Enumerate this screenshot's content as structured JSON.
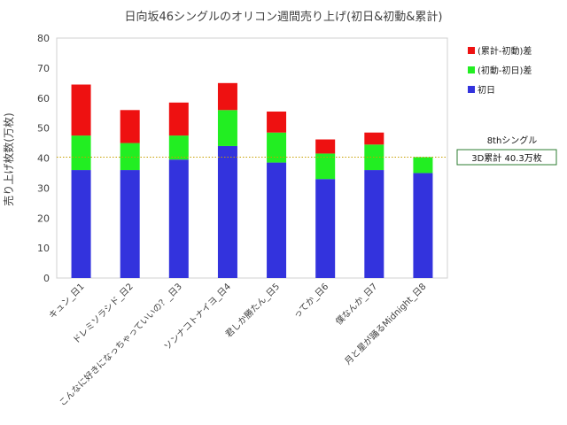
{
  "chart_data": {
    "type": "bar",
    "stacked": true,
    "title": "日向坂46シングルのオリコン週間売り上げ(初日&初動&累計)",
    "ylabel": "売り上げ枚数(万枚)",
    "xlabel": "",
    "ylim": [
      0,
      80
    ],
    "yticks": [
      0,
      10,
      20,
      30,
      40,
      50,
      60,
      70,
      80
    ],
    "grid": false,
    "legend_position": "right",
    "categories": [
      "キュン_日1",
      "ドレミソラシド_日2",
      "こんなに好きになっちゃっていいの？_日3",
      "ソンナコトナイヨ_日4",
      "君しか勝たん_日5",
      "ってか_日6",
      "僕なんか_日7",
      "月と星が踊るMidnight_日8"
    ],
    "series": [
      {
        "name": "初日",
        "color": "#3333dd",
        "values": [
          36.0,
          36.0,
          39.5,
          44.0,
          38.5,
          33.0,
          36.0,
          35.0
        ]
      },
      {
        "name": "(初動-初日)差",
        "color": "#22ee22",
        "values": [
          11.5,
          9.0,
          8.0,
          12.0,
          10.0,
          8.5,
          8.5,
          5.3
        ]
      },
      {
        "name": "(累計-初動)差",
        "color": "#ee1111",
        "values": [
          17.0,
          11.0,
          11.0,
          9.0,
          7.0,
          4.7,
          4.0,
          0.0
        ]
      }
    ],
    "reference_line": {
      "value": 40.3,
      "color": "#c8a000"
    },
    "annotation": {
      "title": "8thシングル",
      "box_text": "3D累計 40.3万枚",
      "box_border": "#2e7d32"
    }
  }
}
